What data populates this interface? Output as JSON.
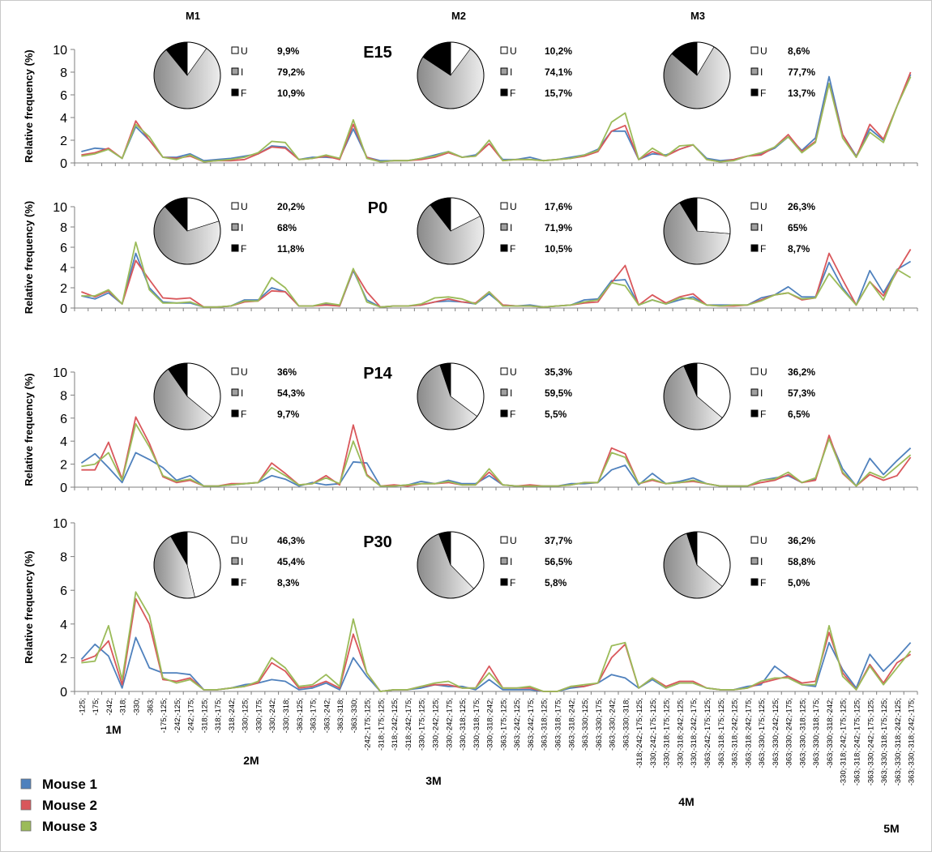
{
  "figure": {
    "column_headers": [
      "M1",
      "M2",
      "M3"
    ],
    "ylabel": "Relative frequency (%)",
    "pie_legend_labels": [
      "U",
      "I",
      "F"
    ],
    "pie_colors": {
      "U": "#ffffff",
      "I": "#a9a9a9",
      "F": "#000000"
    },
    "series_colors": [
      "#4f81bd",
      "#d9575b",
      "#9bbb59"
    ],
    "legend": [
      "Mouse 1",
      "Mouse 2",
      "Mouse 3"
    ],
    "group_labels": [
      "1M",
      "2M",
      "3M",
      "4M",
      "5M"
    ]
  },
  "categories": [
    "-125;",
    "-175;",
    "-242;",
    "-318;",
    "-330;",
    "-363;",
    "-175;-125;",
    "-242;-125;",
    "-242;-175;",
    "-318;-125;",
    "-318;-175;",
    "-318;-242;",
    "-330;-125;",
    "-330;-175;",
    "-330;-242;",
    "-330;-318;",
    "-363;-125;",
    "-363;-175;",
    "-363;-242;",
    "-363;-318;",
    "-363;-330;",
    "-242;-175;-125;",
    "-318;-175;-125;",
    "-318;-242;-125;",
    "-318;-242;-175;",
    "-330;-175;-125;",
    "-330;-242;-125;",
    "-330;-242;-175;",
    "-330;-318;-125;",
    "-330;-318;-175;",
    "-330;-318;-242;",
    "-363;-175;-125;",
    "-363;-242;-125;",
    "-363;-242;-175;",
    "-363;-318;-125;",
    "-363;-318;-175;",
    "-363;-318;-242;",
    "-363;-330;-125;",
    "-363;-330;-175;",
    "-363;-330;-242;",
    "-363;-330;-318;",
    "-318;-242;-175;-125;",
    "-330;-242;-175;-125;",
    "-330;-318;-175;-125;",
    "-330;-318;-242;-125;",
    "-330;-318;-242;-175;",
    "-363;-242;-175;-125;",
    "-363;-318;-175;-125;",
    "-363;-318;-242;-125;",
    "-363;-318;-242;-175;",
    "-363;-330;-175;-125;",
    "-363;-330;-242;-125;",
    "-363;-330;-242;-175;",
    "-363;-330;-318;-125;",
    "-363;-330;-318;-175;",
    "-363;-330;-318;-242;",
    "-330;-318;-242;-175;-125;",
    "-363;-318;-242;-175;-125;",
    "-363;-330;-242;-175;-125;",
    "-363;-330;-318;-175;-125;",
    "-363;-330;-318;-242;-125;",
    "-363;-330;-318;-242;-175;"
  ],
  "chart_data": [
    {
      "type": "line",
      "title": "E15",
      "ylim": [
        0,
        10
      ],
      "yticks": [
        "0",
        "2",
        "4",
        "6",
        "8",
        "10"
      ],
      "series": [
        {
          "name": "Mouse 1",
          "values": [
            1.0,
            1.3,
            1.2,
            0.4,
            3.2,
            2.0,
            0.5,
            0.5,
            0.8,
            0.2,
            0.3,
            0.4,
            0.6,
            0.8,
            1.5,
            1.4,
            0.3,
            0.5,
            0.5,
            0.4,
            3.0,
            0.5,
            0.2,
            0.2,
            0.2,
            0.4,
            0.7,
            1.0,
            0.5,
            0.7,
            1.7,
            0.3,
            0.3,
            0.5,
            0.2,
            0.3,
            0.5,
            0.7,
            1.2,
            2.8,
            2.8,
            0.3,
            0.8,
            0.7,
            1.2,
            1.6,
            0.4,
            0.2,
            0.3,
            0.6,
            0.8,
            1.3,
            2.3,
            1.1,
            2.2,
            7.6,
            2.5,
            0.6,
            3.0,
            2.0,
            5.0,
            7.8
          ]
        },
        {
          "name": "Mouse 2",
          "values": [
            0.7,
            0.9,
            1.3,
            0.4,
            3.7,
            2.0,
            0.5,
            0.4,
            0.6,
            0.1,
            0.2,
            0.2,
            0.3,
            0.8,
            1.4,
            1.3,
            0.3,
            0.4,
            0.6,
            0.3,
            3.4,
            0.5,
            0.1,
            0.2,
            0.2,
            0.3,
            0.5,
            0.9,
            0.5,
            0.6,
            1.7,
            0.2,
            0.3,
            0.3,
            0.2,
            0.3,
            0.4,
            0.6,
            1.0,
            2.8,
            3.3,
            0.3,
            1.0,
            0.6,
            1.2,
            1.6,
            0.3,
            0.1,
            0.3,
            0.6,
            0.7,
            1.4,
            2.5,
            1.0,
            1.9,
            7.0,
            2.5,
            0.5,
            3.4,
            2.1,
            5.0,
            8.0
          ]
        },
        {
          "name": "Mouse 3",
          "values": [
            0.6,
            0.8,
            1.2,
            0.4,
            3.4,
            2.3,
            0.5,
            0.3,
            0.7,
            0.1,
            0.2,
            0.3,
            0.5,
            0.9,
            1.9,
            1.8,
            0.3,
            0.4,
            0.7,
            0.4,
            3.8,
            0.4,
            0.1,
            0.2,
            0.2,
            0.4,
            0.6,
            1.0,
            0.5,
            0.6,
            2.0,
            0.2,
            0.3,
            0.3,
            0.2,
            0.3,
            0.4,
            0.7,
            1.1,
            3.6,
            4.4,
            0.3,
            1.3,
            0.6,
            1.5,
            1.6,
            0.3,
            0.1,
            0.2,
            0.6,
            0.9,
            1.4,
            2.3,
            0.9,
            1.8,
            7.0,
            2.2,
            0.5,
            2.7,
            1.8,
            5.0,
            7.6
          ]
        }
      ],
      "pies": [
        {
          "U": "9,9%",
          "I": "79,2%",
          "F": "10,9%",
          "fractions": {
            "U": 0.099,
            "I": 0.792,
            "F": 0.109
          }
        },
        {
          "U": "10,2%",
          "I": "74,1%",
          "F": "15,7%",
          "fractions": {
            "U": 0.102,
            "I": 0.741,
            "F": 0.157
          }
        },
        {
          "U": "8,6%",
          "I": "77,7%",
          "F": "13,7%",
          "fractions": {
            "U": 0.086,
            "I": 0.777,
            "F": 0.137
          }
        }
      ]
    },
    {
      "type": "line",
      "title": "P0",
      "ylim": [
        0,
        10
      ],
      "yticks": [
        "0",
        "2",
        "4",
        "6",
        "8",
        "10"
      ],
      "series": [
        {
          "name": "Mouse 1",
          "values": [
            1.2,
            0.9,
            1.5,
            0.4,
            5.4,
            2.0,
            0.6,
            0.5,
            0.5,
            0.1,
            0.1,
            0.2,
            0.8,
            0.8,
            2.0,
            1.6,
            0.2,
            0.2,
            0.4,
            0.2,
            3.7,
            0.8,
            0.1,
            0.2,
            0.2,
            0.3,
            0.6,
            0.7,
            0.6,
            0.4,
            1.4,
            0.3,
            0.2,
            0.3,
            0.1,
            0.2,
            0.3,
            0.8,
            0.9,
            2.7,
            2.8,
            0.3,
            0.8,
            0.4,
            0.8,
            1.1,
            0.3,
            0.3,
            0.3,
            0.3,
            1.0,
            1.3,
            2.1,
            1.1,
            1.1,
            4.5,
            2.0,
            0.3,
            3.7,
            1.5,
            3.8,
            4.6
          ]
        },
        {
          "name": "Mouse 2",
          "values": [
            1.6,
            1.1,
            1.7,
            0.4,
            4.7,
            2.8,
            1.0,
            0.9,
            1.0,
            0.1,
            0.1,
            0.2,
            0.6,
            0.7,
            1.7,
            1.6,
            0.2,
            0.2,
            0.3,
            0.2,
            3.8,
            1.6,
            0.1,
            0.2,
            0.2,
            0.3,
            0.6,
            0.9,
            0.6,
            0.5,
            1.6,
            0.3,
            0.2,
            0.2,
            0.1,
            0.2,
            0.3,
            0.5,
            0.6,
            2.5,
            4.2,
            0.3,
            1.3,
            0.5,
            1.1,
            1.4,
            0.3,
            0.2,
            0.2,
            0.3,
            0.8,
            1.3,
            1.5,
            0.8,
            1.0,
            5.4,
            2.8,
            0.3,
            2.6,
            1.2,
            3.6,
            5.8
          ]
        },
        {
          "name": "Mouse 3",
          "values": [
            1.2,
            1.2,
            1.8,
            0.4,
            6.5,
            1.8,
            0.5,
            0.5,
            0.6,
            0.1,
            0.1,
            0.2,
            0.7,
            0.7,
            3.0,
            2.0,
            0.2,
            0.2,
            0.5,
            0.3,
            3.9,
            0.6,
            0.1,
            0.2,
            0.2,
            0.4,
            1.0,
            1.1,
            0.9,
            0.4,
            1.6,
            0.2,
            0.2,
            0.2,
            0.1,
            0.2,
            0.3,
            0.6,
            0.8,
            2.5,
            2.2,
            0.3,
            0.8,
            0.4,
            1.0,
            0.9,
            0.3,
            0.2,
            0.3,
            0.3,
            0.7,
            1.3,
            1.5,
            0.9,
            1.0,
            3.4,
            1.8,
            0.3,
            2.6,
            0.8,
            3.8,
            3.0
          ]
        }
      ],
      "pies": [
        {
          "U": "20,2%",
          "I": "68%",
          "F": "11,8%",
          "fractions": {
            "U": 0.202,
            "I": 0.68,
            "F": 0.118
          }
        },
        {
          "U": "17,6%",
          "I": "71,9%",
          "F": "10,5%",
          "fractions": {
            "U": 0.176,
            "I": 0.719,
            "F": 0.105
          }
        },
        {
          "U": "26,3%",
          "I": "65%",
          "F": "8,7%",
          "fractions": {
            "U": 0.263,
            "I": 0.65,
            "F": 0.087
          }
        }
      ]
    },
    {
      "type": "line",
      "title": "P14",
      "ylim": [
        0,
        10
      ],
      "yticks": [
        "0",
        "2",
        "4",
        "6",
        "8",
        "10"
      ],
      "series": [
        {
          "name": "Mouse 1",
          "values": [
            2.1,
            2.9,
            1.7,
            0.4,
            3.0,
            2.4,
            1.7,
            0.6,
            1.0,
            0.1,
            0.1,
            0.2,
            0.3,
            0.4,
            1.0,
            0.7,
            0.1,
            0.4,
            0.2,
            0.3,
            2.2,
            2.1,
            0.1,
            0.1,
            0.2,
            0.5,
            0.3,
            0.6,
            0.3,
            0.3,
            1.0,
            0.2,
            0.1,
            0.1,
            0.1,
            0.1,
            0.3,
            0.3,
            0.4,
            1.5,
            1.9,
            0.2,
            1.2,
            0.3,
            0.5,
            0.8,
            0.3,
            0.1,
            0.1,
            0.1,
            0.6,
            0.8,
            1.0,
            0.4,
            0.7,
            4.3,
            1.6,
            0.1,
            2.5,
            1.1,
            2.3,
            3.4
          ]
        },
        {
          "name": "Mouse 2",
          "values": [
            1.5,
            1.5,
            3.9,
            0.7,
            6.1,
            3.8,
            0.9,
            0.4,
            0.6,
            0.1,
            0.1,
            0.3,
            0.3,
            0.4,
            2.1,
            1.2,
            0.2,
            0.3,
            1.0,
            0.2,
            5.4,
            1.1,
            0.1,
            0.2,
            0.1,
            0.3,
            0.3,
            0.4,
            0.2,
            0.2,
            1.3,
            0.2,
            0.1,
            0.2,
            0.1,
            0.1,
            0.2,
            0.4,
            0.4,
            3.4,
            2.9,
            0.3,
            0.6,
            0.3,
            0.4,
            0.5,
            0.3,
            0.1,
            0.1,
            0.1,
            0.4,
            0.6,
            1.1,
            0.4,
            0.6,
            4.5,
            1.2,
            0.1,
            1.1,
            0.6,
            1.0,
            2.6
          ]
        },
        {
          "name": "Mouse 3",
          "values": [
            1.8,
            2.0,
            3.0,
            0.6,
            5.5,
            3.5,
            1.0,
            0.5,
            0.7,
            0.1,
            0.1,
            0.2,
            0.3,
            0.4,
            1.7,
            1.0,
            0.2,
            0.3,
            0.8,
            0.3,
            4.0,
            1.0,
            0.1,
            0.1,
            0.2,
            0.3,
            0.3,
            0.5,
            0.2,
            0.2,
            1.6,
            0.2,
            0.1,
            0.1,
            0.1,
            0.1,
            0.2,
            0.4,
            0.4,
            3.0,
            2.6,
            0.3,
            0.7,
            0.3,
            0.4,
            0.6,
            0.3,
            0.1,
            0.1,
            0.1,
            0.6,
            0.7,
            1.3,
            0.4,
            0.8,
            4.2,
            1.3,
            0.1,
            1.3,
            0.8,
            1.8,
            2.8
          ]
        }
      ],
      "pies": [
        {
          "U": "36%",
          "I": "54,3%",
          "F": "9,7%",
          "fractions": {
            "U": 0.36,
            "I": 0.543,
            "F": 0.097
          }
        },
        {
          "U": "35,3%",
          "I": "59,5%",
          "F": "5,5%",
          "fractions": {
            "U": 0.353,
            "I": 0.595,
            "F": 0.055
          }
        },
        {
          "U": "36,2%",
          "I": "57,3%",
          "F": "6,5%",
          "fractions": {
            "U": 0.362,
            "I": 0.573,
            "F": 0.065
          }
        }
      ]
    },
    {
      "type": "line",
      "title": "P30",
      "ylim": [
        0,
        10
      ],
      "yticks": [
        "0",
        "2",
        "4",
        "6",
        "8",
        "10"
      ],
      "series": [
        {
          "name": "Mouse 1",
          "values": [
            1.9,
            2.8,
            2.1,
            0.2,
            3.2,
            1.4,
            1.1,
            1.1,
            1.0,
            0.1,
            0.1,
            0.2,
            0.4,
            0.5,
            0.7,
            0.6,
            0.1,
            0.2,
            0.5,
            0.1,
            2.0,
            0.9,
            0.0,
            0.1,
            0.1,
            0.2,
            0.4,
            0.3,
            0.3,
            0.1,
            0.7,
            0.1,
            0.1,
            0.1,
            0.0,
            0.0,
            0.2,
            0.3,
            0.5,
            1.0,
            0.8,
            0.2,
            0.7,
            0.2,
            0.5,
            0.5,
            0.2,
            0.1,
            0.1,
            0.3,
            0.4,
            1.5,
            0.9,
            0.4,
            0.3,
            2.9,
            1.3,
            0.2,
            2.2,
            1.2,
            2.0,
            2.9
          ]
        },
        {
          "name": "Mouse 2",
          "values": [
            1.8,
            2.1,
            3.0,
            0.4,
            5.5,
            4.0,
            0.7,
            0.6,
            0.8,
            0.1,
            0.1,
            0.2,
            0.3,
            0.5,
            1.7,
            1.2,
            0.2,
            0.3,
            0.6,
            0.2,
            3.4,
            1.1,
            0.0,
            0.1,
            0.1,
            0.3,
            0.4,
            0.4,
            0.2,
            0.2,
            1.5,
            0.2,
            0.2,
            0.2,
            0.0,
            0.0,
            0.3,
            0.3,
            0.5,
            2.0,
            2.8,
            0.2,
            0.8,
            0.3,
            0.6,
            0.6,
            0.2,
            0.1,
            0.1,
            0.2,
            0.5,
            0.7,
            0.9,
            0.5,
            0.6,
            3.5,
            1.1,
            0.1,
            1.6,
            0.5,
            1.7,
            2.2
          ]
        },
        {
          "name": "Mouse 3",
          "values": [
            1.7,
            1.8,
            3.9,
            0.7,
            5.9,
            4.5,
            0.8,
            0.5,
            0.7,
            0.1,
            0.1,
            0.2,
            0.3,
            0.6,
            2.0,
            1.4,
            0.3,
            0.4,
            1.0,
            0.3,
            4.3,
            1.1,
            0.0,
            0.1,
            0.1,
            0.3,
            0.5,
            0.6,
            0.2,
            0.2,
            1.1,
            0.2,
            0.2,
            0.3,
            0.0,
            0.0,
            0.3,
            0.4,
            0.5,
            2.7,
            2.9,
            0.2,
            0.8,
            0.2,
            0.5,
            0.5,
            0.2,
            0.1,
            0.1,
            0.2,
            0.6,
            0.8,
            0.8,
            0.4,
            0.4,
            3.9,
            0.9,
            0.1,
            1.5,
            0.4,
            1.4,
            2.4
          ]
        }
      ],
      "pies": [
        {
          "U": "46,3%",
          "I": "45,4%",
          "F": "8,3%",
          "fractions": {
            "U": 0.463,
            "I": 0.454,
            "F": 0.083
          }
        },
        {
          "U": "37,7%",
          "I": "56,5%",
          "F": "5,8%",
          "fractions": {
            "U": 0.377,
            "I": 0.565,
            "F": 0.058
          }
        },
        {
          "U": "36,2%",
          "I": "58,8%",
          "F": "5,0%",
          "fractions": {
            "U": 0.362,
            "I": 0.588,
            "F": 0.05
          }
        }
      ]
    }
  ]
}
